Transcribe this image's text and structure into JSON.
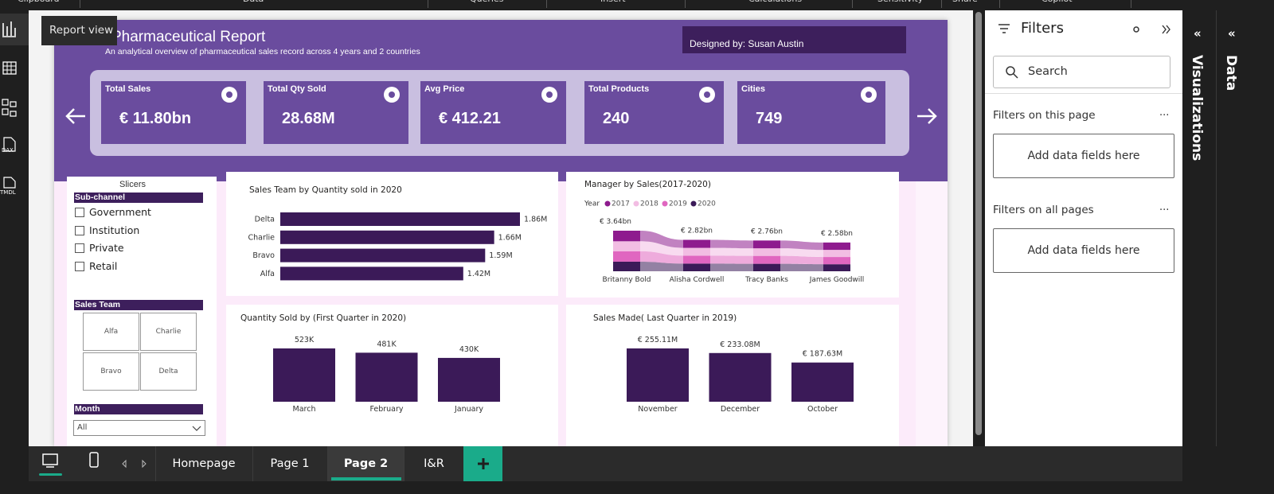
{
  "ribbon_tabs": [
    "Clipboard",
    "Data",
    "Queries",
    "Insert",
    "Calculations",
    "Sensitivity",
    "Share",
    "Copilot"
  ],
  "left_rail": {
    "tooltip": "Report view",
    "icons": [
      "DAX",
      "TMDL"
    ]
  },
  "report": {
    "title": "Pharmaceutical Report",
    "subtitle": "An analytical overview of pharmaceutical sales record across 4 years and 2 countries",
    "designer": "Designed by: Susan Austin",
    "kpis": [
      {
        "label": "Total Sales",
        "value": "€ 11.80bn"
      },
      {
        "label": "Total Qty Sold",
        "value": "28.68M"
      },
      {
        "label": "Avg Price",
        "value": "€ 412.21"
      },
      {
        "label": "Total Products",
        "value": "240"
      },
      {
        "label": "Cities",
        "value": "749"
      }
    ]
  },
  "slicers": {
    "title": "Slicers",
    "sub_channel": {
      "title": "Sub-channel",
      "options": [
        "Government",
        "Institution",
        "Private",
        "Retail"
      ]
    },
    "sales_team": {
      "title": "Sales Team",
      "options": [
        "Alfa",
        "Charlie",
        "Bravo",
        "Delta"
      ]
    },
    "month": {
      "title": "Month",
      "selected": "All"
    }
  },
  "chart_data": [
    {
      "type": "hbar",
      "title": "Sales Team by Quantity sold in 2020",
      "categories": [
        "Delta",
        "Charlie",
        "Bravo",
        "Alfa"
      ],
      "values": [
        1860000,
        1660000,
        1590000,
        1420000
      ],
      "value_labels": [
        "1.86M",
        "1.66M",
        "1.59M",
        "1.42M"
      ],
      "color": "#3b1a58"
    },
    {
      "type": "ribbon",
      "title": "Manager by Sales(2017-2020)",
      "legend_title": "Year",
      "categories": [
        "Britanny Bold",
        "Alisha Cordwell",
        "Tracy Banks",
        "James Goodwill"
      ],
      "series": [
        {
          "name": "2017",
          "color": "#8e1b8e",
          "values": [
            950000000,
            720000000,
            700000000,
            660000000
          ]
        },
        {
          "name": "2018",
          "color": "#f2bde3",
          "values": [
            900000000,
            700000000,
            680000000,
            640000000
          ]
        },
        {
          "name": "2019",
          "color": "#e066c0",
          "values": [
            930000000,
            710000000,
            710000000,
            650000000
          ]
        },
        {
          "name": "2020",
          "color": "#3b1a58",
          "values": [
            860000000,
            690000000,
            670000000,
            630000000
          ]
        }
      ],
      "totals": {
        "values": [
          3640000000,
          2820000000,
          2760000000,
          2580000000
        ],
        "value_labels": [
          "€ 3.64bn",
          "€ 2.82bn",
          "€ 2.76bn",
          "€ 2.58bn"
        ]
      }
    },
    {
      "type": "bar",
      "title": "Quantity Sold by (First Quarter in 2020)",
      "categories": [
        "March",
        "February",
        "January"
      ],
      "values": [
        523000,
        481000,
        430000
      ],
      "value_labels": [
        "523K",
        "481K",
        "430K"
      ],
      "color": "#3b1a58"
    },
    {
      "type": "bar",
      "title": "Sales Made( Last Quarter in 2019)",
      "categories": [
        "November",
        "December",
        "October"
      ],
      "values": [
        255110000,
        233080000,
        187630000
      ],
      "value_labels": [
        "€ 255.11M",
        "€ 233.08M",
        "€ 187.63M"
      ],
      "color": "#3b1a58"
    }
  ],
  "page_tabs": [
    "Homepage",
    "Page 1",
    "Page 2",
    "I&R"
  ],
  "filters": {
    "title": "Filters",
    "search": "Search",
    "sections": [
      {
        "title": "Filters on this page",
        "more": "...",
        "placeholder": "Add data fields here"
      },
      {
        "title": "Filters on all pages",
        "more": "...",
        "placeholder": "Add data fields here"
      }
    ]
  },
  "side_panes": [
    "Visualizations",
    "Data"
  ]
}
